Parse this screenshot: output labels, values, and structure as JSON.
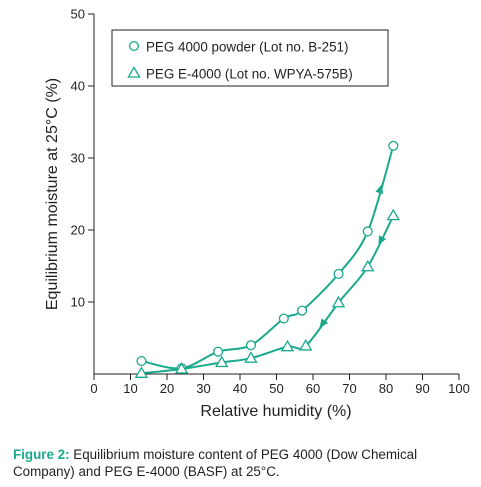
{
  "chart_data": {
    "type": "line",
    "title": "",
    "xlabel": "Relative humidity (%)",
    "ylabel": "Equilibrium moisture at 25°C (%)",
    "xlim": [
      0,
      100
    ],
    "ylim": [
      0,
      50
    ],
    "xticks": [
      "0",
      "10",
      "20",
      "30",
      "40",
      "50",
      "60",
      "70",
      "80",
      "90",
      "100"
    ],
    "yticks": [
      "10",
      "20",
      "30",
      "40",
      "50"
    ],
    "grid": false,
    "legend_position": "top-left-inside",
    "line_color": "#1aa98c",
    "series": [
      {
        "name": "PEG 4000 powder (Lot no. B-251)",
        "marker": "circle",
        "x": [
          13,
          24,
          34,
          43,
          52,
          57,
          67,
          75,
          82
        ],
        "y": [
          1.8,
          0.8,
          3.1,
          4.0,
          7.7,
          8.8,
          13.9,
          19.8,
          31.7
        ]
      },
      {
        "name": "PEG E-4000 (Lot no. WPYA-575B)",
        "marker": "triangle",
        "x": [
          13,
          24,
          35,
          43,
          53,
          58,
          67,
          75,
          82
        ],
        "y": [
          0.1,
          0.7,
          1.6,
          2.2,
          3.8,
          3.9,
          9.9,
          14.9,
          22.0
        ]
      }
    ]
  },
  "caption": {
    "label": "Figure 2:",
    "text": " Equilibrium moisture content of PEG 4000 (Dow Chemical Company) and PEG E-4000 (BASF) at 25°C."
  }
}
